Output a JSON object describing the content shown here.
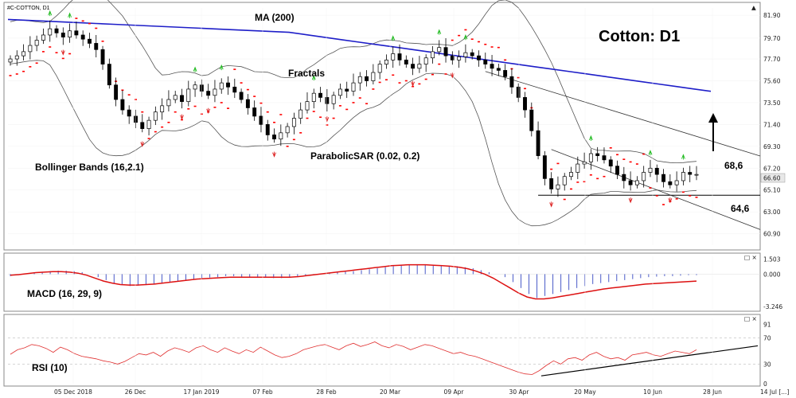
{
  "chart_data": {
    "type": "candlestick",
    "symbol_label": "#C-COTTON, D1",
    "title": "Cotton: D1",
    "current_price_label": "66.60",
    "price_axis_ticks": [
      "81.90",
      "79.70",
      "77.70",
      "75.60",
      "73.50",
      "71.40",
      "69.30",
      "67.20",
      "65.10",
      "63.00",
      "60.90"
    ],
    "price_range": [
      59.8,
      82.6
    ],
    "x_tick_labels": [
      "05 Dec 2018",
      "26 Dec",
      "17 Jan 2019",
      "07 Feb",
      "28 Feb",
      "20 Mar",
      "09 Apr",
      "30 Apr",
      "20 May",
      "10 Jun",
      "28 Jun",
      "14 Jul [...]"
    ],
    "annotations": {
      "ma": "MA (200)",
      "fractals": "Fractals",
      "bollinger": "Bollinger Bands (16,2.1)",
      "psar": "ParabolicSAR (0.02, 0.2)",
      "upper_level": "68,6",
      "lower_level": "64,6"
    },
    "key_levels": {
      "resistance": 68.6,
      "support": 64.6
    },
    "closes": [
      77.7,
      78.0,
      78.4,
      79.0,
      79.5,
      80.0,
      80.6,
      80.2,
      79.8,
      80.4,
      80.0,
      79.6,
      79.2,
      78.6,
      77.2,
      75.2,
      73.8,
      72.8,
      72.2,
      71.6,
      71.0,
      71.8,
      72.6,
      73.2,
      73.8,
      74.2,
      73.6,
      74.8,
      75.2,
      74.6,
      74.2,
      74.8,
      75.4,
      75.0,
      74.5,
      73.8,
      73.0,
      72.2,
      71.4,
      70.4,
      70.0,
      70.6,
      71.2,
      72.0,
      72.8,
      73.6,
      74.4,
      74.0,
      73.4,
      74.2,
      74.8,
      74.6,
      75.4,
      76.0,
      75.6,
      76.4,
      77.2,
      77.6,
      78.2,
      77.6,
      77.2,
      76.8,
      77.2,
      77.8,
      78.4,
      78.8,
      78.0,
      77.6,
      77.9,
      78.3,
      78.0,
      77.6,
      77.2,
      76.8,
      76.6,
      76.0,
      75.0,
      74.0,
      72.8,
      70.8,
      68.4,
      66.2,
      65.2,
      65.6,
      66.4,
      66.8,
      67.6,
      67.8,
      68.6,
      68.4,
      68.0,
      67.4,
      66.6,
      66.0,
      65.6,
      66.0,
      66.8,
      67.2,
      66.6,
      65.9,
      65.6,
      66.0,
      66.8,
      66.6,
      66.6
    ],
    "ma200": {
      "start": 81.5,
      "end": 74.6
    },
    "macd": {
      "label": "MACD (16, 29, 9)",
      "ticks": [
        "1.503",
        "0.000",
        "-3.246"
      ],
      "range": [
        -3.5,
        1.8
      ],
      "histogram": [
        -0.2,
        -0.1,
        0.0,
        0.1,
        0.2,
        0.3,
        0.35,
        0.35,
        0.3,
        0.2,
        0.0,
        -0.3,
        -0.6,
        -0.9,
        -1.1,
        -1.2,
        -1.15,
        -1.1,
        -1.0,
        -0.9,
        -0.8,
        -0.7,
        -0.6,
        -0.5,
        -0.4,
        -0.35,
        -0.3,
        -0.2,
        -0.2,
        -0.25,
        -0.3,
        -0.3,
        -0.35,
        -0.4,
        -0.4,
        -0.35,
        -0.3,
        -0.2,
        -0.1,
        0.0,
        0.1,
        0.2,
        0.25,
        0.3,
        0.4,
        0.5,
        0.6,
        0.7,
        0.8,
        0.9,
        1.0,
        1.0,
        0.95,
        0.95,
        0.9,
        0.85,
        0.8,
        0.7,
        0.6,
        0.4,
        0.2,
        0.0,
        -0.3,
        -0.8,
        -1.4,
        -2.0,
        -2.4,
        -2.2,
        -2.0,
        -1.8,
        -1.6,
        -1.4,
        -1.2,
        -1.0,
        -0.9,
        -0.8,
        -0.7,
        -0.6,
        -0.5,
        -0.4,
        -0.3,
        -0.25,
        -0.2,
        -0.2,
        -0.15,
        -0.1,
        -0.1
      ],
      "signal": [
        -0.1,
        -0.05,
        0.05,
        0.15,
        0.2,
        0.25,
        0.25,
        0.2,
        0.1,
        -0.1,
        -0.4,
        -0.7,
        -0.9,
        -1.05,
        -1.1,
        -1.1,
        -1.05,
        -1.0,
        -0.9,
        -0.8,
        -0.7,
        -0.6,
        -0.5,
        -0.45,
        -0.4,
        -0.35,
        -0.3,
        -0.3,
        -0.3,
        -0.3,
        -0.3,
        -0.3,
        -0.3,
        -0.3,
        -0.25,
        -0.15,
        -0.05,
        0.05,
        0.15,
        0.25,
        0.35,
        0.45,
        0.55,
        0.65,
        0.75,
        0.85,
        0.9,
        0.95,
        0.95,
        0.95,
        0.9,
        0.85,
        0.8,
        0.7,
        0.55,
        0.3,
        0.0,
        -0.4,
        -0.9,
        -1.4,
        -1.9,
        -2.3,
        -2.5,
        -2.5,
        -2.4,
        -2.25,
        -2.1,
        -1.95,
        -1.8,
        -1.65,
        -1.5,
        -1.4,
        -1.3,
        -1.2,
        -1.1,
        -1.0,
        -0.95,
        -0.9,
        -0.85,
        -0.8,
        -0.75,
        -0.7
      ]
    },
    "rsi": {
      "label": "RSI (10)",
      "ticks": [
        "91",
        "70",
        "30",
        "0"
      ],
      "range": [
        0,
        100
      ],
      "values": [
        45,
        52,
        55,
        60,
        58,
        54,
        48,
        56,
        52,
        46,
        42,
        40,
        38,
        35,
        33,
        30,
        34,
        40,
        46,
        44,
        48,
        42,
        50,
        55,
        52,
        48,
        55,
        58,
        52,
        48,
        55,
        50,
        46,
        52,
        48,
        56,
        50,
        44,
        40,
        42,
        46,
        52,
        55,
        58,
        60,
        56,
        52,
        58,
        62,
        57,
        60,
        64,
        58,
        55,
        60,
        57,
        52,
        56,
        60,
        58,
        54,
        50,
        46,
        48,
        44,
        42,
        38,
        34,
        30,
        26,
        22,
        18,
        15,
        14,
        20,
        28,
        35,
        30,
        38,
        40,
        36,
        44,
        48,
        42,
        38,
        40,
        36,
        44,
        46,
        48,
        44,
        42,
        46,
        50,
        48,
        46,
        52
      ]
    }
  }
}
